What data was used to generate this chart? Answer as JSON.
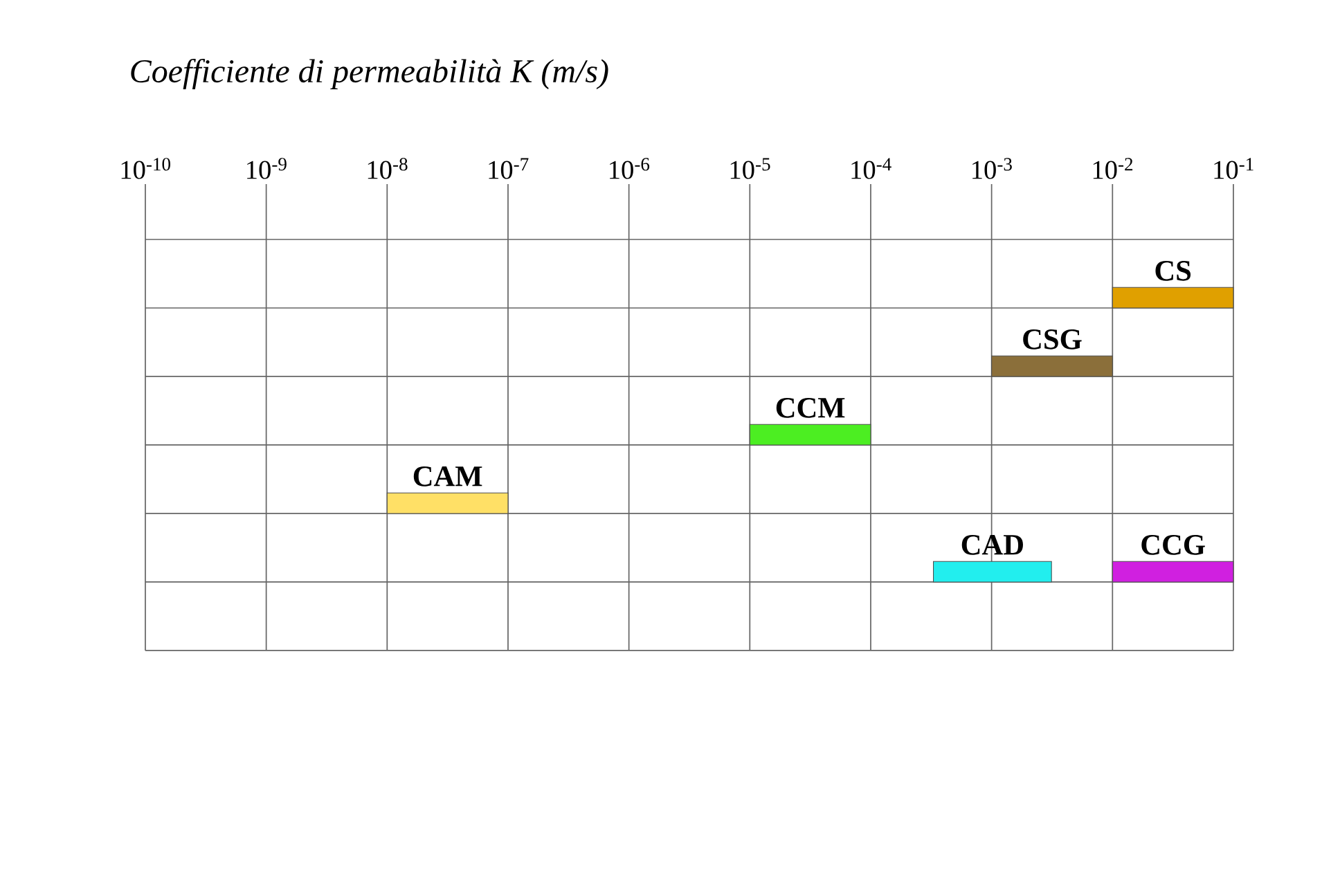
{
  "chart_data": {
    "type": "bar",
    "orientation": "horizontal",
    "log": "x",
    "grid": true,
    "xlabel": "*Coefficiente di permeabilità K (m/s)*",
    "categories": [
      null,
      null,
      null,
      null,
      null,
      null
    ],
    "xlim": [
      1e-10,
      0.1
    ],
    "xticks": [
      {
        "value": 1e-10,
        "label": "10$^{-10}$"
      },
      {
        "value": 1e-09,
        "label": "10$^{-9}$"
      },
      {
        "value": 1e-08,
        "label": "10$^{-8}$"
      },
      {
        "value": 1e-07,
        "label": "10$^{-7}$"
      },
      {
        "value": 1e-06,
        "label": "10$^{-6}$"
      },
      {
        "value": 1e-05,
        "label": "10$^{-5}$"
      },
      {
        "value": 0.0001,
        "label": "10$^{-4}$"
      },
      {
        "value": 0.001,
        "label": "10$^{-3}$"
      },
      {
        "value": 0.01,
        "label": "10$^{-2}$"
      },
      {
        "value": 0.1,
        "label": "10$^{-1}$"
      }
    ],
    "series": [
      {
        "name": "CS",
        "color": "#e0a000",
        "values": [
          0.09,
          null,
          null,
          null,
          null,
          null
        ],
        "base": [
          0.01,
          null,
          null,
          null,
          null,
          null
        ]
      },
      {
        "name": "CSG",
        "color": "#8b6f3a",
        "values": [
          null,
          0.009,
          null,
          null,
          null,
          null
        ],
        "base": [
          null,
          0.001,
          null,
          null,
          null,
          null
        ]
      },
      {
        "name": "CCM",
        "color": "#4cee22",
        "values": [
          null,
          null,
          9e-05,
          null,
          null,
          null
        ],
        "base": [
          null,
          null,
          1e-05,
          null,
          null,
          null
        ]
      },
      {
        "name": "CAM",
        "color": "#ffe066",
        "values": [
          null,
          null,
          null,
          9e-08,
          null,
          null
        ],
        "base": [
          null,
          null,
          null,
          1e-08,
          null,
          null
        ]
      },
      {
        "name": "CAD",
        "color": "#22eeee",
        "values": [
          null,
          null,
          null,
          null,
          0.0028,
          null
        ],
        "base": [
          null,
          null,
          null,
          null,
          0.00033,
          null
        ]
      },
      {
        "name": "CCG",
        "color": "#d020e0",
        "values": [
          null,
          null,
          null,
          null,
          0.09,
          null
        ],
        "base": [
          null,
          null,
          null,
          null,
          0.01,
          null
        ]
      }
    ]
  }
}
